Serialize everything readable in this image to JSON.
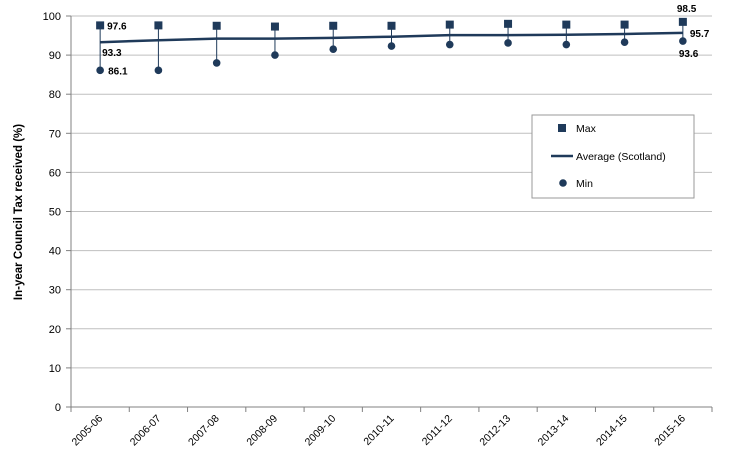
{
  "chart_data": {
    "type": "line",
    "title": "",
    "xlabel": "",
    "ylabel": "In-year Council Tax received (%)",
    "ylim": [
      0,
      100
    ],
    "yticks": [
      0,
      10,
      20,
      30,
      40,
      50,
      60,
      70,
      80,
      90,
      100
    ],
    "grid": true,
    "legend_position": "right",
    "categories": [
      "2005-06",
      "2006-07",
      "2007-08",
      "2008-09",
      "2009-10",
      "2010-11",
      "2011-12",
      "2012-13",
      "2013-14",
      "2014-15",
      "2015-16"
    ],
    "series": [
      {
        "name": "Max",
        "marker": "square",
        "color": "#1f3a5a",
        "values": [
          97.6,
          97.6,
          97.5,
          97.3,
          97.5,
          97.5,
          97.8,
          98.0,
          97.8,
          97.8,
          98.5
        ]
      },
      {
        "name": "Average (Scotland)",
        "marker": "line",
        "color": "#1f3a5a",
        "values": [
          93.3,
          93.8,
          94.2,
          94.2,
          94.4,
          94.7,
          95.1,
          95.1,
          95.2,
          95.4,
          95.7
        ]
      },
      {
        "name": "Min",
        "marker": "circle",
        "color": "#1f3a5a",
        "values": [
          86.1,
          86.1,
          88.0,
          90.0,
          91.5,
          92.3,
          92.7,
          93.1,
          92.7,
          93.3,
          93.6
        ]
      }
    ],
    "data_labels": [
      {
        "series": "Max",
        "category": "2005-06",
        "text": "97.6"
      },
      {
        "series": "Average (Scotland)",
        "category": "2005-06",
        "text": "93.3"
      },
      {
        "series": "Min",
        "category": "2005-06",
        "text": "86.1"
      },
      {
        "series": "Max",
        "category": "2015-16",
        "text": "98.5"
      },
      {
        "series": "Average (Scotland)",
        "category": "2015-16",
        "text": "95.7"
      },
      {
        "series": "Min",
        "category": "2015-16",
        "text": "93.6"
      }
    ]
  }
}
